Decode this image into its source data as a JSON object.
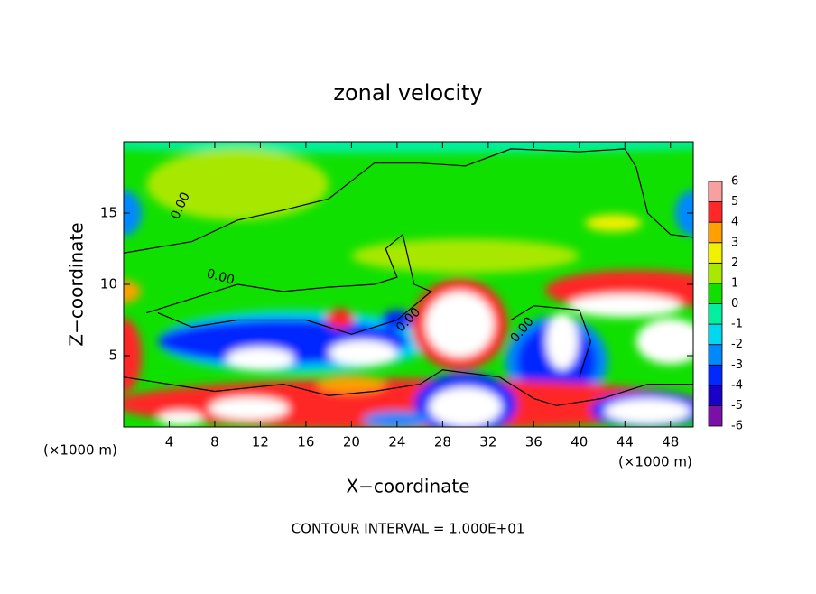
{
  "chart_data": {
    "type": "contour",
    "title": "zonal velocity",
    "x_label": "X−coordinate",
    "y_label": "Z−coordinate",
    "x_unit_labels": [
      "(×1000 m)",
      "(×1000 m)"
    ],
    "footer": "CONTOUR INTERVAL = 1.000E+01",
    "contour_labels": [
      "0.00",
      "0.00",
      "0.00",
      "0.00"
    ],
    "xlim": [
      0,
      50
    ],
    "ylim": [
      0,
      20
    ],
    "xticks": [
      4,
      8,
      12,
      16,
      20,
      24,
      28,
      32,
      36,
      40,
      44,
      48
    ],
    "yticks": [
      5,
      10,
      15
    ],
    "colorbar": {
      "levels": [
        -6,
        -5,
        -4,
        -3,
        -2,
        -1,
        0,
        1,
        2,
        3,
        4,
        5,
        6
      ],
      "colors": [
        "#7a10a8",
        "#1a00c8",
        "#0028ff",
        "#0088ff",
        "#00d8f0",
        "#00f0a0",
        "#10e000",
        "#a8e800",
        "#f0f000",
        "#ffa000",
        "#ff2828",
        "#f8a0a0"
      ]
    }
  }
}
